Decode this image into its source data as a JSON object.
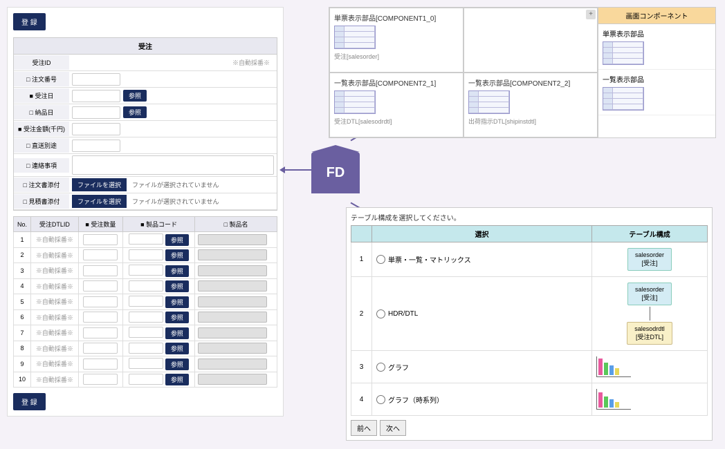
{
  "left": {
    "register_btn": "登 録",
    "form_title": "受注",
    "fields": {
      "order_id": "受注ID",
      "order_id_note": "※自動採番※",
      "order_no": "□ 注文番号",
      "order_date": "■ 受注日",
      "delivery_date": "□ 納品日",
      "amount": "■ 受注金額(千円)",
      "direct_ship": "□ 直送別途",
      "notes": "□ 連絡事項",
      "order_attach": "□ 注文書添付",
      "quote_attach": "□ 見積書添付"
    },
    "ref_btn": "参照",
    "file_btn": "ファイルを選択",
    "file_none": "ファイルが選択されていません",
    "detail_headers": {
      "no": "No.",
      "dtl_id": "受注DTLID",
      "qty": "■ 受注数量",
      "prod_code": "■ 製品コード",
      "prod_name": "□ 製品名"
    },
    "detail_rows": [
      1,
      2,
      3,
      4,
      5,
      6,
      7,
      8,
      9,
      10
    ],
    "auto_num": "※自動採番※"
  },
  "fd_label": "FD",
  "top_right": {
    "plus": "+",
    "cells": [
      {
        "label": "単票表示部品[COMPONENT1_0]",
        "sub": "受注[salesorder]"
      },
      {
        "label": ""
      },
      {
        "label": "一覧表示部品[COMPONENT2_1]",
        "sub": "受注DTL[salesodrdtl]"
      },
      {
        "label": "一覧表示部品[COMPONENT2_2]",
        "sub": "出荷指示DTL[shipinstdtl]"
      }
    ],
    "sidebar_header": "画面コンポーネント",
    "sidebar_items": [
      "単票表示部品",
      "一覧表示部品"
    ]
  },
  "bottom_right": {
    "instruction": "テーブル構成を選択してください。",
    "headers": {
      "select": "選択",
      "structure": "テーブル構成"
    },
    "rows": [
      {
        "no": "1",
        "label": "単票・一覧・マトリックス",
        "schema": [
          {
            "t": "box1",
            "l1": "salesorder",
            "l2": "[受注]"
          }
        ]
      },
      {
        "no": "2",
        "label": "HDR/DTL",
        "schema": [
          {
            "t": "box1",
            "l1": "salesorder",
            "l2": "[受注]"
          },
          {
            "t": "line"
          },
          {
            "t": "box2",
            "l1": "salesodrdtl",
            "l2": "[受注DTL]"
          }
        ]
      },
      {
        "no": "3",
        "label": "グラフ",
        "chart": [
          {
            "h": 24,
            "c": "#e85a9e"
          },
          {
            "h": 18,
            "c": "#5ac85a"
          },
          {
            "h": 14,
            "c": "#5a9ee8"
          },
          {
            "h": 10,
            "c": "#e8d85a"
          }
        ]
      },
      {
        "no": "4",
        "label": "グラフ（時系列）",
        "chart": [
          {
            "h": 22,
            "c": "#e85a9e"
          },
          {
            "h": 16,
            "c": "#5ac85a"
          },
          {
            "h": 12,
            "c": "#5a9ee8"
          },
          {
            "h": 8,
            "c": "#e8d85a"
          }
        ]
      }
    ],
    "prev": "前へ",
    "next": "次へ"
  }
}
